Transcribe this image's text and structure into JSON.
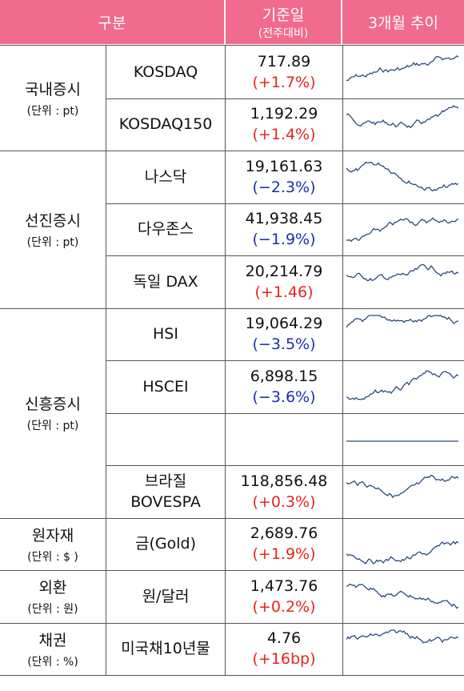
{
  "header": {
    "category": "구분",
    "date": "기준일",
    "date_sub": "(전주대비)",
    "trend": "3개월 추이"
  },
  "groups": [
    {
      "name": "국내증시",
      "unit": "(단위 : pt)",
      "rows": [
        {
          "name": "KOSDAQ",
          "value": "717.89",
          "change": "(+1.7%)",
          "color": "#e8241c"
        },
        {
          "name": "KOSDAQ150",
          "value": "1,192.29",
          "change": "(+1.4%)",
          "color": "#e8241c"
        }
      ]
    },
    {
      "name": "선진증시",
      "unit": "(단위 : pt)",
      "rows": [
        {
          "name": "나스닥",
          "value": "19,161.63",
          "change": "(−2.3%)",
          "color": "#1a2fb0"
        },
        {
          "name": "다우존스",
          "value": "41,938.45",
          "change": "(−1.9%)",
          "color": "#1a2fb0"
        },
        {
          "name": "독일 DAX",
          "value": "20,214.79",
          "change": "(+1.46)",
          "color": "#e8241c"
        }
      ]
    },
    {
      "name": "신흥증시",
      "unit": "(단위 : pt)",
      "rows": [
        {
          "name": "HSI",
          "value": "19,064.29",
          "change": "(−3.5%)",
          "color": "#1a2fb0"
        },
        {
          "name": "HSCEI",
          "value": "6,898.15",
          "change": "(−3.6%)",
          "color": "#1a2fb0"
        },
        {},
        {
          "name": "브라질\nBOVESPA",
          "value": "118,856.48",
          "change": "(+0.3%)",
          "color": "#e8241c"
        }
      ]
    },
    {
      "name": "원자재",
      "unit": "(단위 : $ )",
      "rows": [
        {
          "name": "금(Gold)",
          "value": "2,689.76",
          "change": "(+1.9%)",
          "color": "#e8241c"
        }
      ]
    },
    {
      "name": "외환",
      "unit": "(단위 : 원)",
      "rows": [
        {
          "name": "원/달러",
          "value": "1,473.76",
          "change": "(+0.2%)",
          "color": "#e8241c"
        }
      ]
    },
    {
      "name": "채권",
      "unit": "(단위 : %)",
      "rows": [
        {
          "name": "미국채10년물",
          "value": "4.76",
          "change": "(+16bp)",
          "color": "#e8241c"
        }
      ]
    }
  ]
}
